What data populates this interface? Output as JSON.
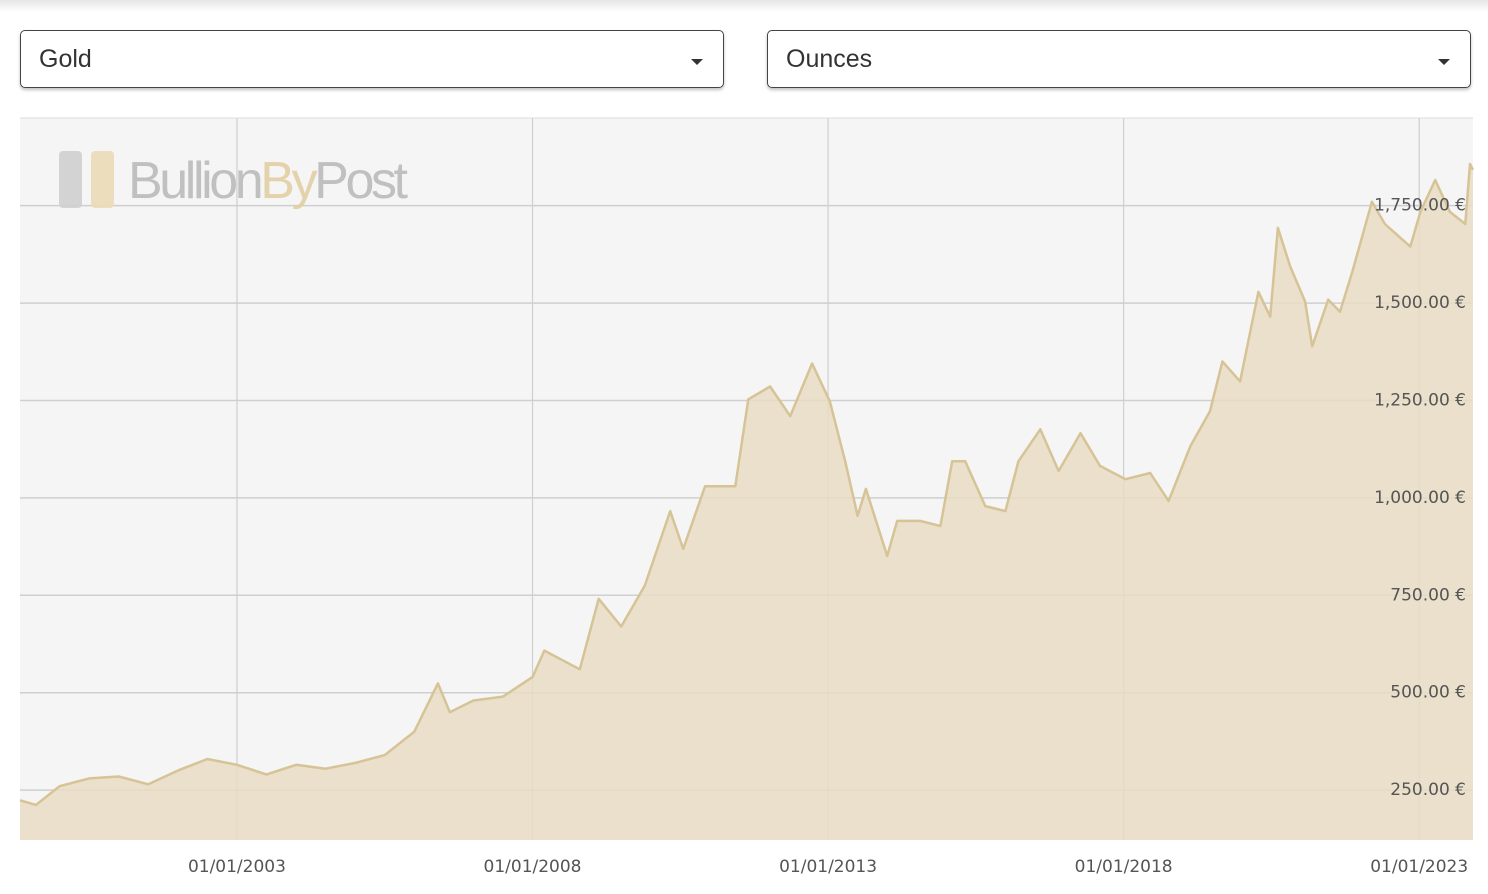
{
  "controls": {
    "metal": "Gold",
    "unit": "Ounces"
  },
  "chart_data": {
    "type": "area",
    "watermark": {
      "first": "Bullion",
      "second": "By",
      "third": "Post"
    },
    "x": [
      1999.33,
      1999.6,
      2000.0,
      2000.5,
      2001.0,
      2001.5,
      2002.0,
      2002.5,
      2003.0,
      2003.5,
      2004.0,
      2004.5,
      2005.0,
      2005.5,
      2006.0,
      2006.4,
      2006.6,
      2007.0,
      2007.5,
      2008.0,
      2008.2,
      2008.8,
      2009.12,
      2009.5,
      2009.9,
      2010.33,
      2010.55,
      2010.92,
      2011.43,
      2011.65,
      2012.02,
      2012.36,
      2012.73,
      2013.03,
      2013.29,
      2013.5,
      2013.64,
      2014.0,
      2014.17,
      2014.56,
      2014.9,
      2015.1,
      2015.32,
      2015.66,
      2016.0,
      2016.22,
      2016.59,
      2016.9,
      2017.27,
      2017.6,
      2018.03,
      2018.45,
      2018.76,
      2019.13,
      2019.46,
      2019.67,
      2019.97,
      2020.28,
      2020.48,
      2020.61,
      2020.82,
      2021.07,
      2021.19,
      2021.46,
      2021.66,
      2021.87,
      2022.2,
      2022.42,
      2022.85,
      2023.02,
      2023.27,
      2023.52,
      2023.78,
      2023.86,
      2023.91
    ],
    "series": [
      {
        "name": "Gold",
        "color": "#d6c396",
        "fill": "#e8dcc4",
        "values": [
          224,
          212,
          260,
          280,
          285,
          265,
          300,
          330,
          315,
          290,
          315,
          305,
          320,
          340,
          400,
          524,
          450,
          480,
          490,
          540,
          608,
          560,
          741,
          670,
          775,
          966,
          869,
          1030,
          1030,
          1253,
          1286,
          1210,
          1345,
          1248,
          1094,
          954,
          1023,
          851,
          941,
          941,
          928,
          1094,
          1094,
          979,
          966,
          1094,
          1176,
          1069,
          1166,
          1082,
          1048,
          1064,
          992,
          1133,
          1222,
          1350,
          1299,
          1529,
          1465,
          1693,
          1593,
          1504,
          1389,
          1509,
          1478,
          1581,
          1760,
          1703,
          1645,
          1734,
          1816,
          1734,
          1703,
          1857,
          1842
        ]
      }
    ],
    "xlim": [
      1999.33,
      2023.91
    ],
    "ylim": [
      122,
      1975
    ],
    "xticks": [
      {
        "value": 2003,
        "label": "01/01/2003"
      },
      {
        "value": 2008,
        "label": "01/01/2008"
      },
      {
        "value": 2013,
        "label": "01/01/2013"
      },
      {
        "value": 2018,
        "label": "01/01/2018"
      },
      {
        "value": 2023,
        "label": "01/01/2023"
      }
    ],
    "yticks": [
      {
        "value": 250,
        "label": "250.00 €"
      },
      {
        "value": 500,
        "label": "500.00 €"
      },
      {
        "value": 750,
        "label": "750.00 €"
      },
      {
        "value": 1000,
        "label": "1,000.00 €"
      },
      {
        "value": 1250,
        "label": "1,250.00 €"
      },
      {
        "value": 1500,
        "label": "1,500.00 €"
      },
      {
        "value": 1750,
        "label": "1,750.00 €"
      }
    ],
    "grid": true
  }
}
